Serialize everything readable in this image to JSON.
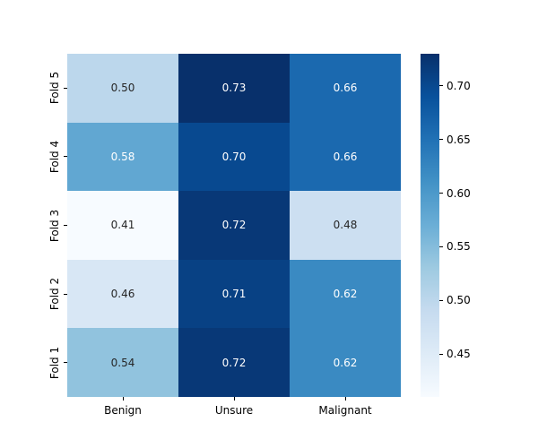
{
  "chart_data": {
    "type": "heatmap",
    "rows": [
      "Fold 5",
      "Fold 4",
      "Fold 3",
      "Fold 2",
      "Fold 1"
    ],
    "columns": [
      "Benign",
      "Unsure",
      "Malignant"
    ],
    "values": [
      [
        0.5,
        0.73,
        0.66
      ],
      [
        0.58,
        0.7,
        0.66
      ],
      [
        0.41,
        0.72,
        0.48
      ],
      [
        0.46,
        0.71,
        0.62
      ],
      [
        0.54,
        0.72,
        0.62
      ]
    ],
    "vmin": 0.41,
    "vmax": 0.73,
    "colormap": "Blues",
    "colormap_stops": [
      "#f7fbff",
      "#deebf7",
      "#c6dbef",
      "#9ecae1",
      "#6baed6",
      "#4292c6",
      "#2171b5",
      "#08519c",
      "#08306b"
    ],
    "colorbar_ticks": [
      0.7,
      0.65,
      0.6,
      0.55,
      0.5,
      0.45
    ],
    "annot_decimals": 2,
    "annot_light_color": "#ffffff",
    "annot_dark_color": "#262626",
    "tick_color": "#000000",
    "background": "#ffffff",
    "legend_position": "right-colorbar",
    "grid": false,
    "title": "",
    "xlabel": "",
    "ylabel": ""
  }
}
